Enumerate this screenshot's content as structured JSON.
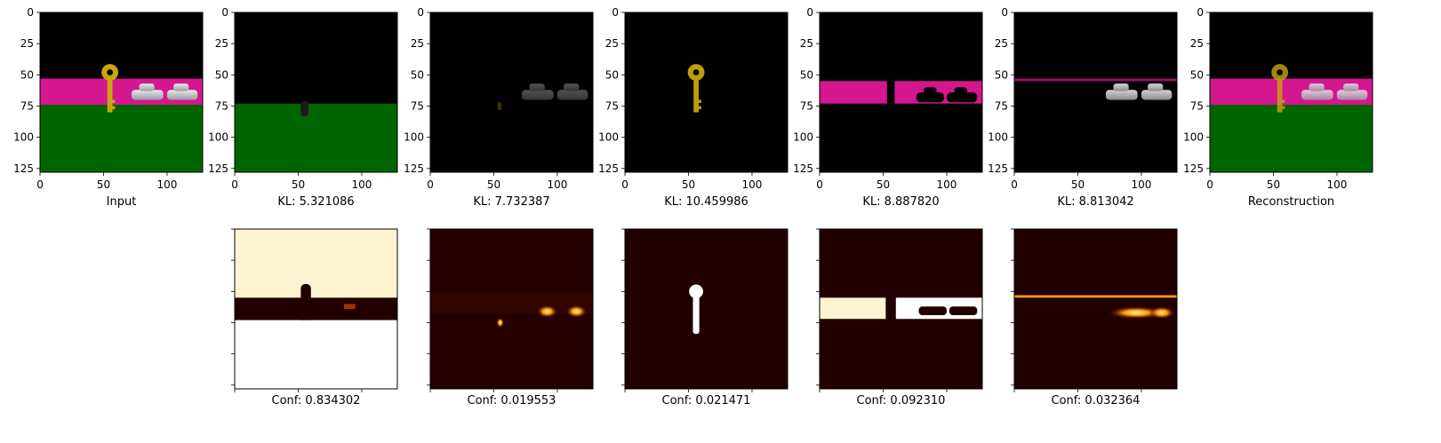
{
  "chart_data": {
    "type": "image-grid",
    "colors": {
      "background": "#000000",
      "magenta_band": "#d4168f",
      "green_ground": "#006400",
      "key_yellow": "#c9a610",
      "car_gray": "#cfd3d6",
      "heat_low": "#000000",
      "heat_mid": "#c81e00",
      "heat_high": "#ffffff",
      "heat_warm": "#fff4d2"
    },
    "top_row": [
      {
        "id": "input",
        "label": "Input",
        "axis_ticks": true
      },
      {
        "id": "slot-1",
        "label": "KL: 5.321086",
        "kl": 5.321086,
        "content": "green ground, key stem"
      },
      {
        "id": "slot-2",
        "label": "KL: 7.732387",
        "kl": 7.732387,
        "content": "faint cars"
      },
      {
        "id": "slot-3",
        "label": "KL: 10.459986",
        "kl": 10.459986,
        "content": "key"
      },
      {
        "id": "slot-4",
        "label": "KL: 8.887820",
        "kl": 8.88782,
        "content": "magenta band"
      },
      {
        "id": "slot-5",
        "label": "KL: 8.813042",
        "kl": 8.813042,
        "content": "cars"
      },
      {
        "id": "reconstruction",
        "label": "Reconstruction",
        "axis_ticks": true
      }
    ],
    "bottom_row": [
      {
        "id": "conf-1",
        "label": "Conf: 0.834302",
        "conf": 0.834302
      },
      {
        "id": "conf-2",
        "label": "Conf: 0.019553",
        "conf": 0.019553
      },
      {
        "id": "conf-3",
        "label": "Conf: 0.021471",
        "conf": 0.021471
      },
      {
        "id": "conf-4",
        "label": "Conf: 0.092310",
        "conf": 0.09231
      },
      {
        "id": "conf-5",
        "label": "Conf: 0.032364",
        "conf": 0.032364
      }
    ],
    "x_ticks": [
      "0",
      "50",
      "100"
    ],
    "y_ticks": [
      "0",
      "25",
      "50",
      "75",
      "100",
      "125"
    ],
    "x_tick_values": [
      0,
      50,
      100
    ],
    "y_tick_values": [
      0,
      25,
      50,
      75,
      100,
      125
    ],
    "image_size": [
      128,
      128
    ]
  }
}
